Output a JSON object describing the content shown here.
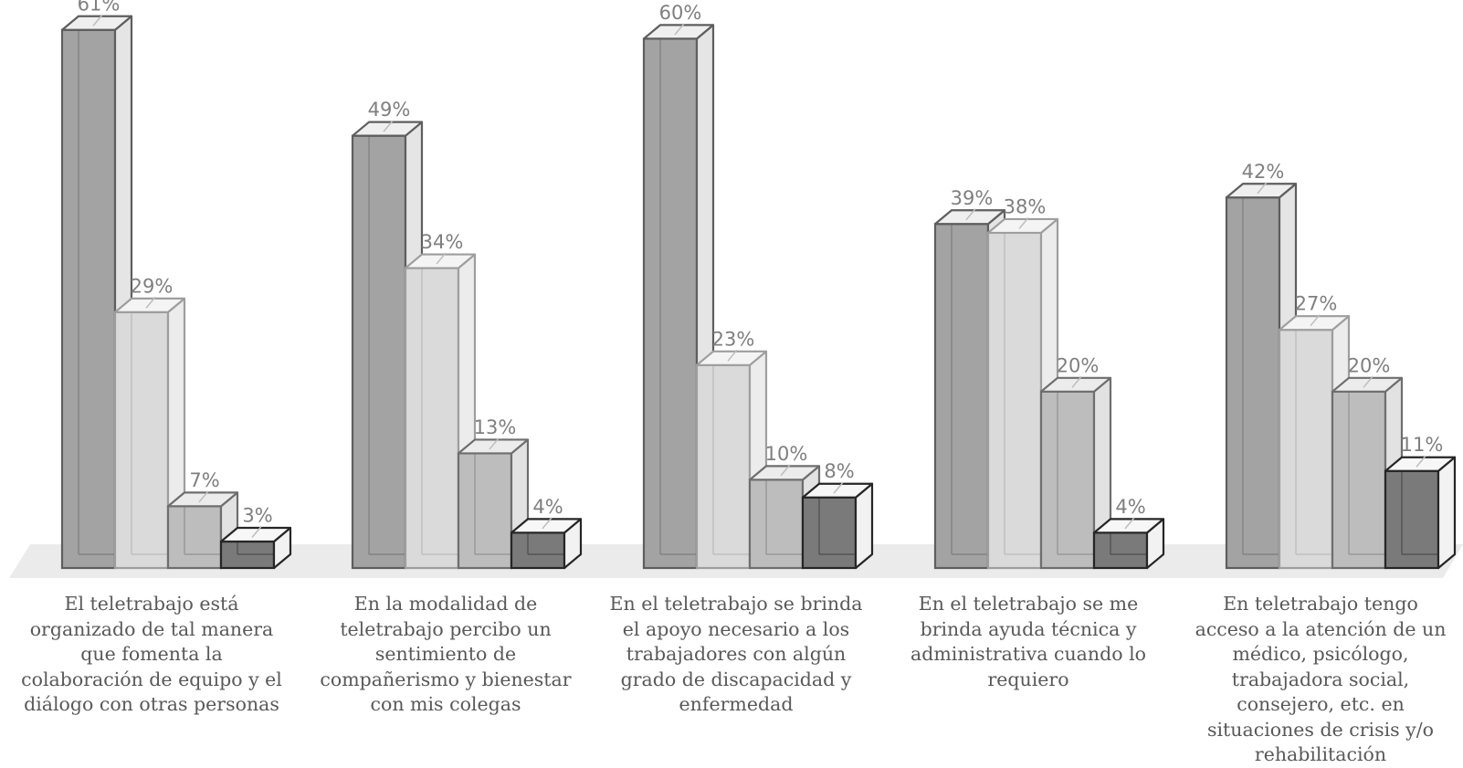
{
  "chart_data": {
    "type": "bar",
    "style": "3d-clustered-column",
    "categories": [
      "El teletrabajo está organizado de tal manera que fomenta la colaboración de equipo y el diálogo con otras personas",
      "En la modalidad de teletrabajo percibo un sentimiento de compañerismo y bienestar con mis colegas",
      "En el teletrabajo se brinda el apoyo necesario a los trabajadores con algún grado de discapacidad y enfermedad",
      "En el teletrabajo se me brinda ayuda técnica y administrativa cuando lo requiero",
      "En teletrabajo tengo acceso a la atención de un médico, psicólogo, trabajadora social, consejero, etc. en situaciones de crisis y/o rehabilitación"
    ],
    "series": [
      {
        "values": [
          61,
          49,
          60,
          39,
          42
        ],
        "color": "#a3a3a3"
      },
      {
        "values": [
          29,
          34,
          23,
          38,
          27
        ],
        "color": "#dadada"
      },
      {
        "values": [
          7,
          13,
          10,
          20,
          20
        ],
        "color": "#bdbdbd"
      },
      {
        "values": [
          3,
          4,
          8,
          4,
          11
        ],
        "color": "#7a7a7a"
      }
    ],
    "data_labels": [
      [
        "61%",
        "29%",
        "7%",
        "3%"
      ],
      [
        "49%",
        "34%",
        "13%",
        "4%"
      ],
      [
        "60%",
        "23%",
        "10%",
        "8%"
      ],
      [
        "39%",
        "38%",
        "20%",
        "4%"
      ],
      [
        "42%",
        "27%",
        "20%",
        "11%"
      ]
    ],
    "value_unit": "%",
    "ylim": [
      0,
      61
    ],
    "title": "",
    "xlabel": "",
    "ylabel": "",
    "legend": "none",
    "grid": false
  }
}
